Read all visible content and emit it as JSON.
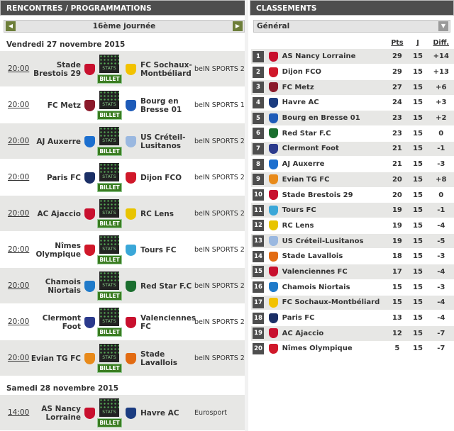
{
  "left": {
    "title": "RENCONTRES / PROGRAMMATIONS",
    "journee": "16ème journée",
    "prev_icon": "chevron-left-icon",
    "next_icon": "chevron-right-icon",
    "stats_label": "STATS",
    "billet_label": "BILLET",
    "days": [
      {
        "date": "Vendredi 27 novembre 2015",
        "matches": [
          {
            "time": "20:00",
            "home": "Stade Brestois 29",
            "away": "FC Sochaux-Montbéliard",
            "channel": "beIN SPORTS 2",
            "hc": "#c8102e",
            "ac": "#f2c200"
          },
          {
            "time": "20:00",
            "home": "FC Metz",
            "away": "Bourg en Bresse 01",
            "channel": "beIN SPORTS 1",
            "hc": "#8b1a2b",
            "ac": "#1e5bb8"
          },
          {
            "time": "20:00",
            "home": "AJ Auxerre",
            "away": "US Créteil-Lusitanos",
            "channel": "beIN SPORTS 2",
            "hc": "#1c6fcf",
            "ac": "#9ab8e0"
          },
          {
            "time": "20:00",
            "home": "Paris FC",
            "away": "Dijon FCO",
            "channel": "beIN SPORTS 2",
            "hc": "#1b2f66",
            "ac": "#d0182a"
          },
          {
            "time": "20:00",
            "home": "AC Ajaccio",
            "away": "RC Lens",
            "channel": "beIN SPORTS 2",
            "hc": "#c8102e",
            "ac": "#e8c400"
          },
          {
            "time": "20:00",
            "home": "Nîmes Olympique",
            "away": "Tours FC",
            "channel": "beIN SPORTS 2",
            "hc": "#d0182a",
            "ac": "#3aa7d8"
          },
          {
            "time": "20:00",
            "home": "Chamois Niortais",
            "away": "Red Star F.C",
            "channel": "beIN SPORTS 2",
            "hc": "#1f7ac9",
            "ac": "#1a6e2e"
          },
          {
            "time": "20:00",
            "home": "Clermont Foot",
            "away": "Valenciennes FC",
            "channel": "beIN SPORTS 2",
            "hc": "#2b3a8c",
            "ac": "#c8102e"
          },
          {
            "time": "20:00",
            "home": "Evian TG FC",
            "away": "Stade Lavallois",
            "channel": "beIN SPORTS 2",
            "hc": "#e88a1a",
            "ac": "#e26b12"
          }
        ]
      },
      {
        "date": "Samedi 28 novembre 2015",
        "matches": [
          {
            "time": "14:00",
            "home": "AS Nancy Lorraine",
            "away": "Havre AC",
            "channel": "Eurosport",
            "hc": "#c8102e",
            "ac": "#1b3c80"
          }
        ]
      }
    ]
  },
  "right": {
    "title": "CLASSEMENTS",
    "select_value": "Général",
    "select_icon": "chevron-down-icon",
    "headers": {
      "pts": "Pts",
      "j": "J",
      "diff": "Diff."
    },
    "rows": [
      {
        "rank": "1",
        "team": "AS Nancy Lorraine",
        "pts": "29",
        "j": "15",
        "diff": "+14",
        "c": "#c8102e"
      },
      {
        "rank": "2",
        "team": "Dijon FCO",
        "pts": "29",
        "j": "15",
        "diff": "+13",
        "c": "#d0182a"
      },
      {
        "rank": "3",
        "team": "FC Metz",
        "pts": "27",
        "j": "15",
        "diff": "+6",
        "c": "#8b1a2b"
      },
      {
        "rank": "4",
        "team": "Havre AC",
        "pts": "24",
        "j": "15",
        "diff": "+3",
        "c": "#1b3c80"
      },
      {
        "rank": "5",
        "team": "Bourg en Bresse 01",
        "pts": "23",
        "j": "15",
        "diff": "+2",
        "c": "#1e5bb8"
      },
      {
        "rank": "6",
        "team": "Red Star F.C",
        "pts": "23",
        "j": "15",
        "diff": "0",
        "c": "#1a6e2e"
      },
      {
        "rank": "7",
        "team": "Clermont Foot",
        "pts": "21",
        "j": "15",
        "diff": "-1",
        "c": "#2b3a8c"
      },
      {
        "rank": "8",
        "team": "AJ Auxerre",
        "pts": "21",
        "j": "15",
        "diff": "-3",
        "c": "#1c6fcf"
      },
      {
        "rank": "9",
        "team": "Evian TG FC",
        "pts": "20",
        "j": "15",
        "diff": "+8",
        "c": "#e88a1a"
      },
      {
        "rank": "10",
        "team": "Stade Brestois 29",
        "pts": "20",
        "j": "15",
        "diff": "0",
        "c": "#c8102e"
      },
      {
        "rank": "11",
        "team": "Tours FC",
        "pts": "19",
        "j": "15",
        "diff": "-1",
        "c": "#3aa7d8"
      },
      {
        "rank": "12",
        "team": "RC Lens",
        "pts": "19",
        "j": "15",
        "diff": "-4",
        "c": "#e8c400"
      },
      {
        "rank": "13",
        "team": "US Créteil-Lusitanos",
        "pts": "19",
        "j": "15",
        "diff": "-5",
        "c": "#9ab8e0"
      },
      {
        "rank": "14",
        "team": "Stade Lavallois",
        "pts": "18",
        "j": "15",
        "diff": "-3",
        "c": "#e26b12"
      },
      {
        "rank": "15",
        "team": "Valenciennes FC",
        "pts": "17",
        "j": "15",
        "diff": "-4",
        "c": "#c8102e"
      },
      {
        "rank": "16",
        "team": "Chamois Niortais",
        "pts": "15",
        "j": "15",
        "diff": "-3",
        "c": "#1f7ac9"
      },
      {
        "rank": "17",
        "team": "FC Sochaux-Montbéliard",
        "pts": "15",
        "j": "15",
        "diff": "-4",
        "c": "#f2c200"
      },
      {
        "rank": "18",
        "team": "Paris FC",
        "pts": "13",
        "j": "15",
        "diff": "-4",
        "c": "#1b2f66"
      },
      {
        "rank": "19",
        "team": "AC Ajaccio",
        "pts": "12",
        "j": "15",
        "diff": "-7",
        "c": "#c8102e"
      },
      {
        "rank": "20",
        "team": "Nîmes Olympique",
        "pts": "5",
        "j": "15",
        "diff": "-7",
        "c": "#d0182a"
      }
    ]
  }
}
